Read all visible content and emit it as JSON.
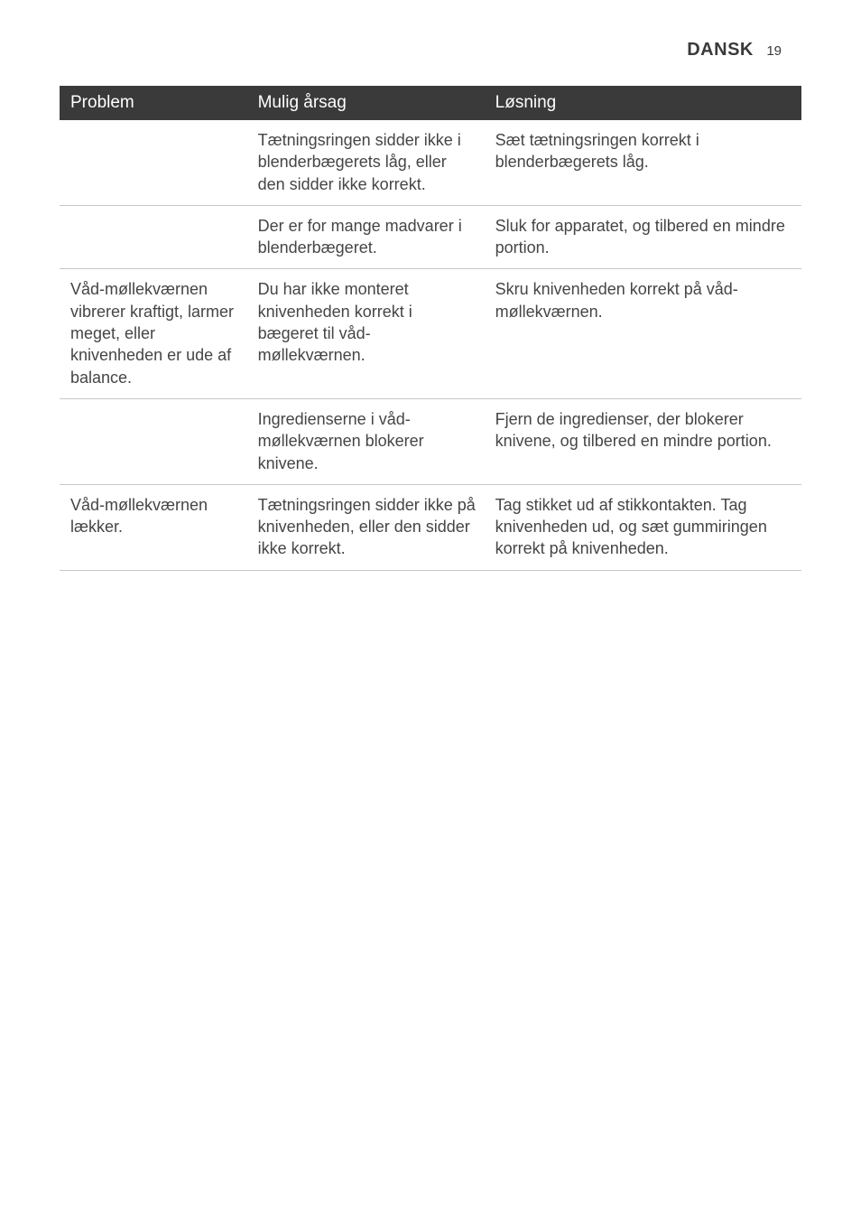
{
  "header": {
    "language": "DANSK",
    "page_number": "19"
  },
  "table": {
    "headers": {
      "problem": "Problem",
      "cause": "Mulig årsag",
      "solution": "Løsning"
    },
    "rows": [
      {
        "problem": "",
        "cause": "Tætningsringen sidder ikke i blenderbægerets låg, eller den sidder ikke korrekt.",
        "solution": "Sæt tætningsringen korrekt i blenderbægerets låg."
      },
      {
        "problem": "",
        "cause": "Der er for mange madvarer i blenderbægeret.",
        "solution": "Sluk for apparatet, og tilbered en mindre portion."
      },
      {
        "problem": "Våd-møllekværnen vibrerer kraftigt, larmer meget, eller knivenheden er ude af balance.",
        "cause": "Du har ikke monteret knivenheden korrekt i bægeret til våd-møllekværnen.",
        "solution": "Skru knivenheden korrekt på  våd-møllekværnen."
      },
      {
        "problem": "",
        "cause": "Ingredienserne i våd-møllekværnen blokerer knivene.",
        "solution": "Fjern de ingredienser, der blokerer knivene, og tilbered en mindre portion."
      },
      {
        "problem": "Våd-møllekværnen lækker.",
        "cause": "Tætningsringen sidder ikke på knivenheden, eller den sidder ikke korrekt.",
        "solution": "Tag stikket ud af stikkontakten. Tag knivenheden ud, og sæt gummiringen korrekt på knivenheden."
      }
    ]
  },
  "colors": {
    "header_bg": "#3a3a3a",
    "header_text": "#ffffff",
    "body_text": "#454545",
    "border": "#c8c8c8",
    "page_bg": "#ffffff"
  }
}
